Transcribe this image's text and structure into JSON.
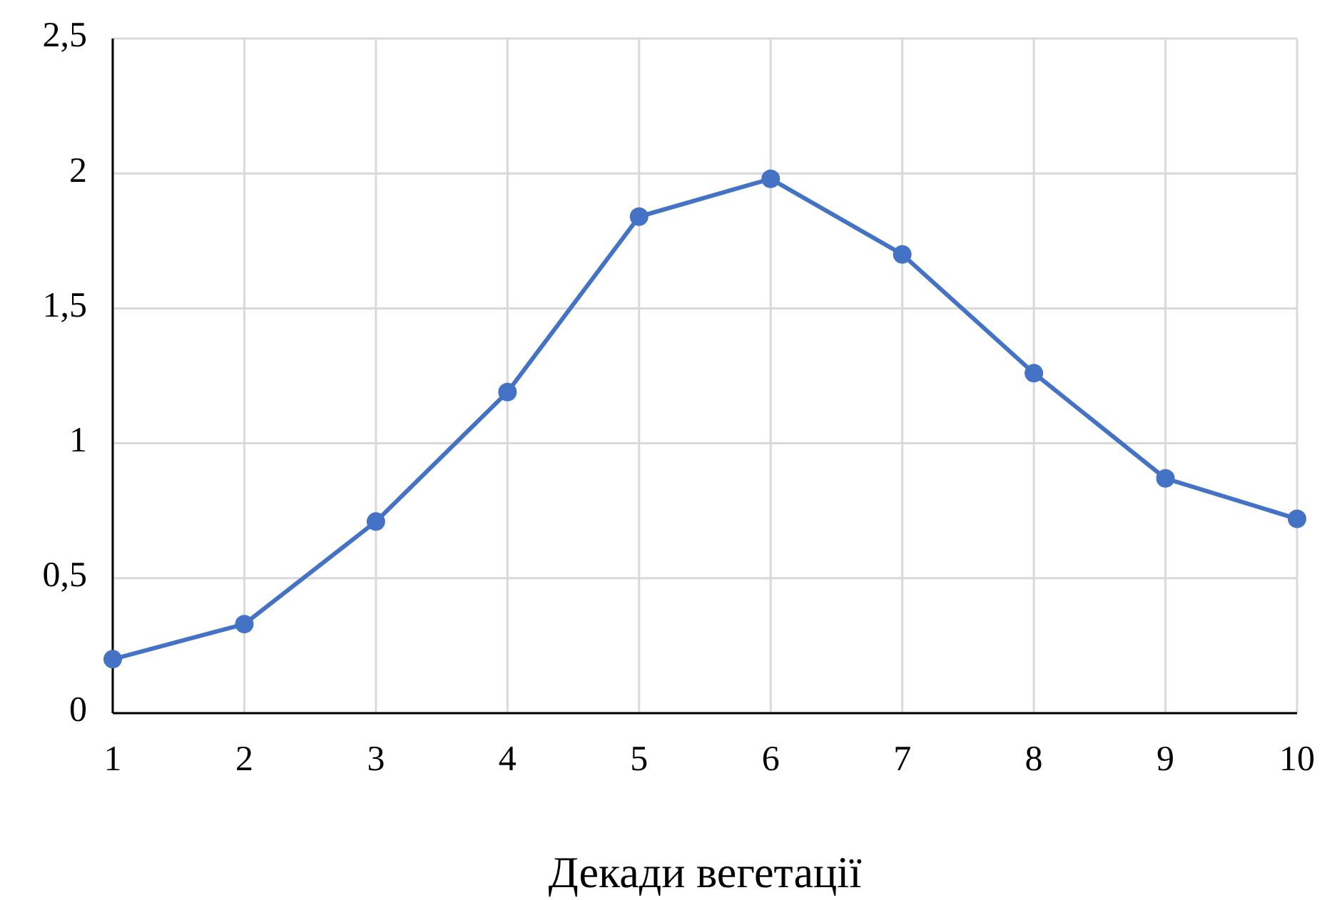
{
  "chart_data": {
    "type": "line",
    "xlabel": "Декади вегетації",
    "x": [
      1,
      2,
      3,
      4,
      5,
      6,
      7,
      8,
      9,
      10
    ],
    "series": [
      {
        "color": "#4472c4",
        "values": [
          0.2,
          0.33,
          0.71,
          1.19,
          1.84,
          1.98,
          1.7,
          1.26,
          0.87,
          0.72
        ]
      }
    ],
    "xlim": [
      1,
      10
    ],
    "xticks": [
      1,
      2,
      3,
      4,
      5,
      6,
      7,
      8,
      9,
      10
    ],
    "ylim": [
      0,
      2.5
    ],
    "yticks": [
      0,
      {
        "value": 0.5,
        "label": "0,5"
      },
      1,
      {
        "value": 1.5,
        "label": "1,5"
      },
      2,
      {
        "value": 2.5,
        "label": "2,5"
      }
    ],
    "grid": true,
    "marker": "circle",
    "line_style": "solid"
  }
}
